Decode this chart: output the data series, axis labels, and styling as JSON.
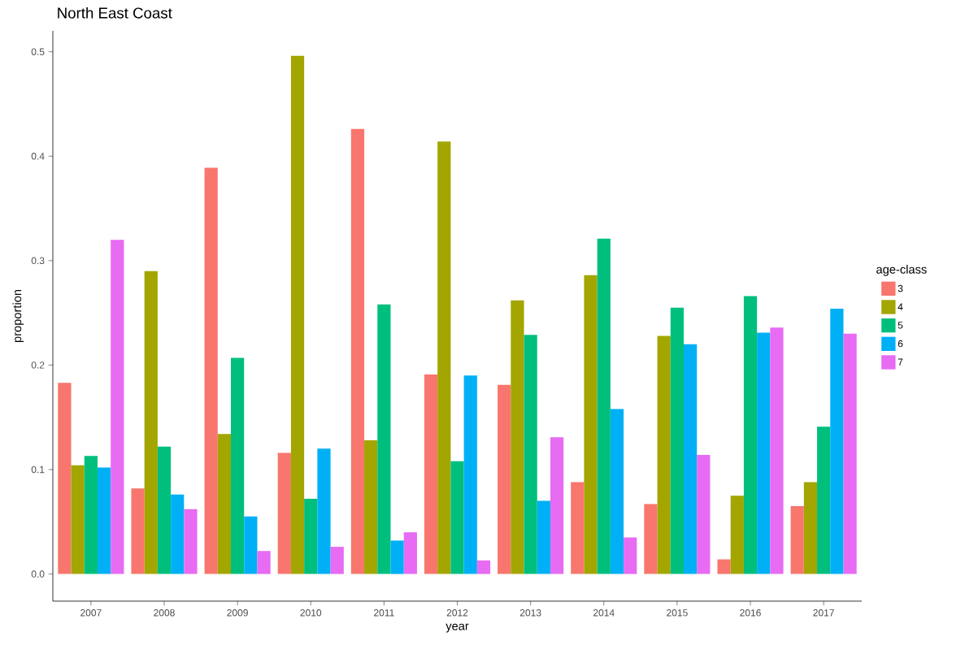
{
  "chart_data": {
    "type": "bar",
    "title": "North East Coast",
    "xlabel": "year",
    "ylabel": "proportion",
    "legend_title": "age-class",
    "legend": "right",
    "grid": false,
    "categories": [
      "2007",
      "2008",
      "2009",
      "2010",
      "2011",
      "2012",
      "2013",
      "2014",
      "2015",
      "2016",
      "2017"
    ],
    "ylim": [
      -0.026,
      0.52
    ],
    "yticks": [
      {
        "value": 0,
        "label": "0.0"
      },
      {
        "value": 0.1,
        "label": "0.1"
      },
      {
        "value": 0.2,
        "label": "0.2"
      },
      {
        "value": 0.3,
        "label": "0.3"
      },
      {
        "value": 0.4,
        "label": "0.4"
      },
      {
        "value": 0.5,
        "label": "0.5"
      }
    ],
    "series": [
      {
        "name": "3",
        "color": "#f8766d",
        "values": [
          0.183,
          0.082,
          0.389,
          0.116,
          0.426,
          0.191,
          0.181,
          0.088,
          0.067,
          0.014,
          0.065
        ]
      },
      {
        "name": "4",
        "color": "#a3a500",
        "values": [
          0.104,
          0.29,
          0.134,
          0.496,
          0.128,
          0.414,
          0.262,
          0.286,
          0.228,
          0.075,
          0.088
        ]
      },
      {
        "name": "5",
        "color": "#00bf7d",
        "values": [
          0.113,
          0.122,
          0.207,
          0.072,
          0.258,
          0.108,
          0.229,
          0.321,
          0.255,
          0.266,
          0.141
        ]
      },
      {
        "name": "6",
        "color": "#00b0f6",
        "values": [
          0.102,
          0.076,
          0.055,
          0.12,
          0.032,
          0.19,
          0.07,
          0.158,
          0.22,
          0.231,
          0.254
        ]
      },
      {
        "name": "7",
        "color": "#e76bf3",
        "values": [
          0.32,
          0.062,
          0.022,
          0.026,
          0.04,
          0.013,
          0.131,
          0.035,
          0.114,
          0.236,
          0.23
        ]
      }
    ]
  }
}
